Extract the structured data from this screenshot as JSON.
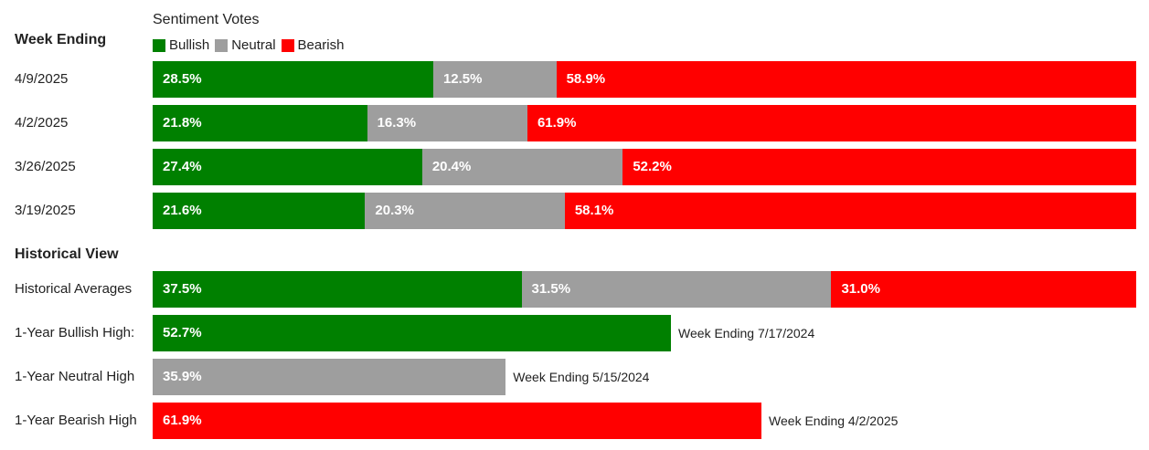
{
  "chart_data": {
    "type": "bar",
    "orientation": "horizontal",
    "stacked": true,
    "title": "Sentiment Votes",
    "colors": {
      "Bullish": "#008000",
      "Neutral": "#9e9e9e",
      "Bearish": "#ff0000"
    },
    "legend": [
      "Bullish",
      "Neutral",
      "Bearish"
    ],
    "weekly": {
      "heading": "Week Ending",
      "rows": [
        {
          "label": "4/9/2025",
          "values": [
            28.5,
            12.5,
            58.9
          ],
          "texts": [
            "28.5%",
            "12.5%",
            "58.9%"
          ]
        },
        {
          "label": "4/2/2025",
          "values": [
            21.8,
            16.3,
            61.9
          ],
          "texts": [
            "21.8%",
            "16.3%",
            "61.9%"
          ]
        },
        {
          "label": "3/26/2025",
          "values": [
            27.4,
            20.4,
            52.2
          ],
          "texts": [
            "27.4%",
            "20.4%",
            "52.2%"
          ]
        },
        {
          "label": "3/19/2025",
          "values": [
            21.6,
            20.3,
            58.1
          ],
          "texts": [
            "21.6%",
            "20.3%",
            "58.1%"
          ]
        }
      ]
    },
    "historical": {
      "heading": "Historical View",
      "averages": {
        "label": "Historical Averages",
        "values": [
          37.5,
          31.5,
          31.0
        ],
        "texts": [
          "37.5%",
          "31.5%",
          "31.0%"
        ]
      },
      "highs": [
        {
          "label": "1-Year Bullish High:",
          "series": "Bullish",
          "value": 52.7,
          "text": "52.7%",
          "note": "Week Ending 7/17/2024"
        },
        {
          "label": "1-Year Neutral High",
          "series": "Neutral",
          "value": 35.9,
          "text": "35.9%",
          "note": "Week Ending 5/15/2024"
        },
        {
          "label": "1-Year Bearish High",
          "series": "Bearish",
          "value": 61.9,
          "text": "61.9%",
          "note": "Week Ending 4/2/2025"
        }
      ]
    },
    "xlim": [
      0,
      100
    ]
  }
}
